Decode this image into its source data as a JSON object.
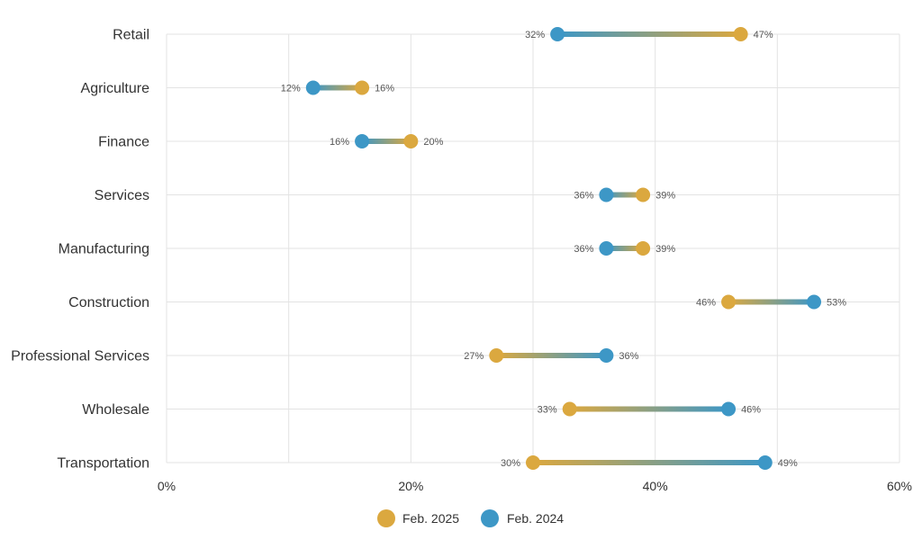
{
  "chart_data": {
    "type": "dumbbell",
    "title": "",
    "xlabel": "",
    "ylabel": "",
    "xlim": [
      0,
      60
    ],
    "x_ticks": [
      "0%",
      "20%",
      "40%",
      "60%"
    ],
    "x_tick_values": [
      0,
      20,
      40,
      60
    ],
    "grid": true,
    "legend_position": "bottom-center",
    "categories": [
      "Retail",
      "Agriculture",
      "Finance",
      "Services",
      "Manufacturing",
      "Construction",
      "Professional Services",
      "Wholesale",
      "Transportation"
    ],
    "series": [
      {
        "name": "Feb. 2025",
        "color": "#DBA83F",
        "values": [
          47,
          16,
          20,
          39,
          39,
          46,
          27,
          33,
          30
        ]
      },
      {
        "name": "Feb. 2024",
        "color": "#3D97C6",
        "values": [
          32,
          12,
          16,
          36,
          36,
          53,
          36,
          46,
          49
        ]
      }
    ],
    "value_suffix": "%"
  },
  "colors": {
    "grid": "#E3E3E3",
    "feb2025": "#DBA83F",
    "feb2024": "#3D97C6"
  }
}
